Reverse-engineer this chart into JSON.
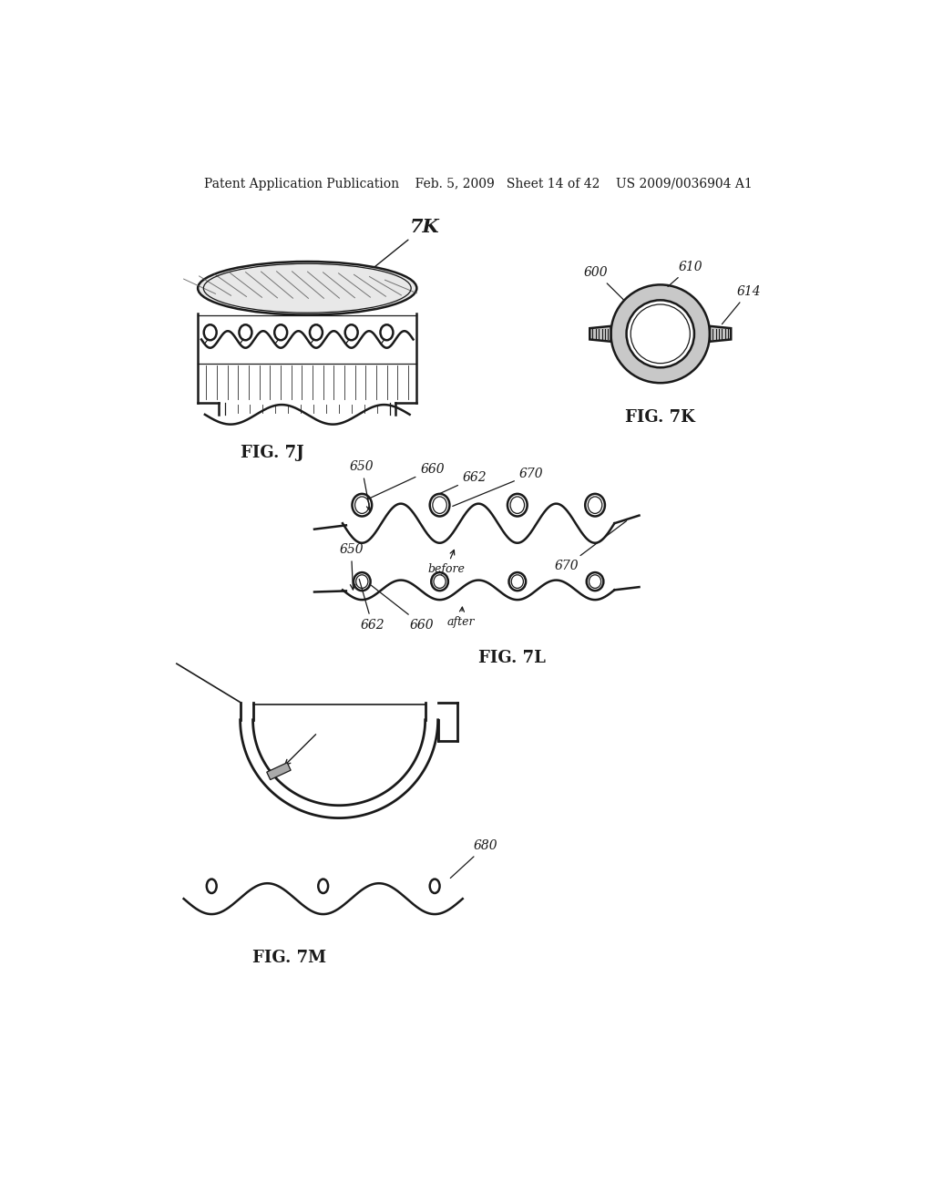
{
  "background_color": "#ffffff",
  "header_text": "Patent Application Publication    Feb. 5, 2009   Sheet 14 of 42    US 2009/0036904 A1",
  "fig7j_label": "FIG. 7J",
  "fig7k_label": "FIG. 7K",
  "fig7l_label": "FIG. 7L",
  "fig7m_label": "FIG. 7M",
  "ref_7K": "7K",
  "ref_600": "600",
  "ref_610": "610",
  "ref_614": "614",
  "ref_650a": "650",
  "ref_650b": "650",
  "ref_660a": "660",
  "ref_660b": "660",
  "ref_662a": "662",
  "ref_662b": "662",
  "ref_670a": "670",
  "ref_670b": "670",
  "ref_before": "before",
  "ref_after": "after",
  "ref_680": "680"
}
